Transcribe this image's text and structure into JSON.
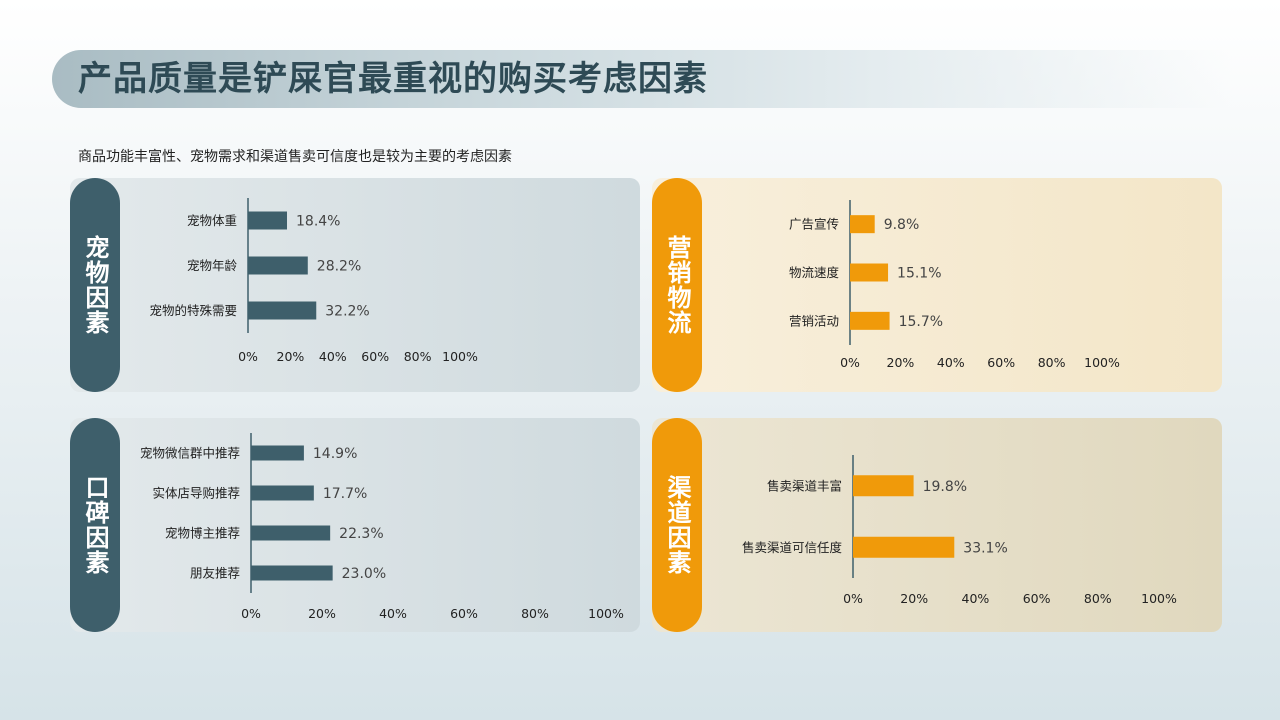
{
  "header": {
    "title": "产品质量是铲屎官最重视的购买考虑因素",
    "subtitle": "商品功能丰富性、宠物需求和渠道售卖可信度也是较为主要的考虑因素"
  },
  "colors": {
    "teal": "#3e5f6b",
    "orange": "#f09a0a"
  },
  "chart_data": [
    {
      "type": "bar",
      "panel_label": "宠物因素",
      "categories": [
        "宠物体重",
        "宠物年龄",
        "宠物的特殊需要"
      ],
      "values": [
        18.4,
        28.2,
        32.2
      ],
      "value_labels": [
        "18.4%",
        "28.2%",
        "32.2%"
      ],
      "xlim": [
        0,
        100
      ],
      "ticks": [
        "0%",
        "20%",
        "40%",
        "60%",
        "80%",
        "100%"
      ],
      "color": "#3e5f6b"
    },
    {
      "type": "bar",
      "panel_label": "营销物流",
      "categories": [
        "广告宣传",
        "物流速度",
        "营销活动"
      ],
      "values": [
        9.8,
        15.1,
        15.7
      ],
      "value_labels": [
        "9.8%",
        "15.1%",
        "15.7%"
      ],
      "xlim": [
        0,
        100
      ],
      "ticks": [
        "0%",
        "20%",
        "40%",
        "60%",
        "80%",
        "100%"
      ],
      "color": "#f09a0a"
    },
    {
      "type": "bar",
      "panel_label": "口碑因素",
      "categories": [
        "宠物微信群中推荐",
        "实体店导购推荐",
        "宠物博主推荐",
        "朋友推荐"
      ],
      "values": [
        14.9,
        17.7,
        22.3,
        23.0
      ],
      "value_labels": [
        "14.9%",
        "17.7%",
        "22.3%",
        "23.0%"
      ],
      "xlim": [
        0,
        100
      ],
      "ticks": [
        "0%",
        "20%",
        "40%",
        "60%",
        "80%",
        "100%"
      ],
      "color": "#3e5f6b"
    },
    {
      "type": "bar",
      "panel_label": "渠道因素",
      "categories": [
        "售卖渠道丰富",
        "售卖渠道可信任度"
      ],
      "values": [
        19.8,
        33.1
      ],
      "value_labels": [
        "19.8%",
        "33.1%"
      ],
      "xlim": [
        0,
        100
      ],
      "ticks": [
        "0%",
        "20%",
        "40%",
        "60%",
        "80%",
        "100%"
      ],
      "color": "#f09a0a"
    }
  ]
}
